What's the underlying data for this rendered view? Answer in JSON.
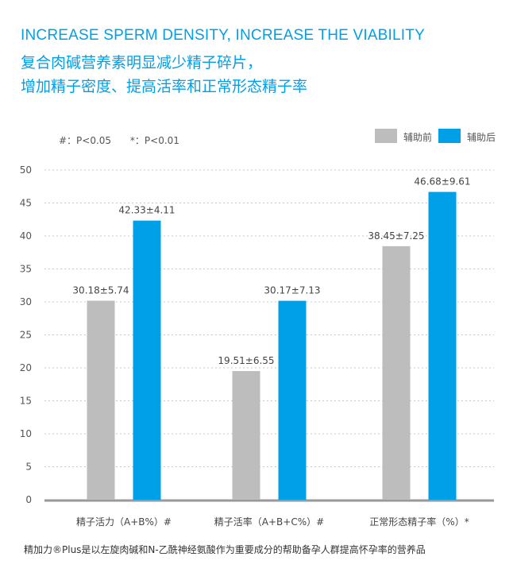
{
  "header": {
    "title_en": "INCREASE SPERM DENSITY, INCREASE THE VIABILITY",
    "title_cn_line1": "复合肉碱营养素明显减少精子碎片，",
    "title_cn_line2": "增加精子密度、提高活率和正常形态精子率"
  },
  "significance_notes": [
    "#：P<0.05",
    "*：P<0.01"
  ],
  "colors": {
    "before": "#bdbdbd",
    "after": "#00a0e9",
    "title": "#00a0e9"
  },
  "footnote": "精加力®Plus是以左旋肉碱和N-乙酰神经氨酸作为重要成分的帮助备孕人群提高怀孕率的营养品",
  "chart_data": {
    "type": "bar",
    "categories": [
      "精子活力（A+B%）#",
      "精子活率（A+B+C%）#",
      "正常形态精子率（%）*"
    ],
    "series": [
      {
        "name": "辅助前",
        "color": "#bdbdbd",
        "values": [
          30.18,
          19.51,
          38.45
        ],
        "labels": [
          "30.18±5.74",
          "19.51±6.55",
          "38.45±7.25"
        ]
      },
      {
        "name": "辅助后",
        "color": "#00a0e9",
        "values": [
          42.33,
          30.17,
          46.68
        ],
        "labels": [
          "42.33±4.11",
          "30.17±7.13",
          "46.68±9.61"
        ]
      }
    ],
    "ylim": [
      0,
      50
    ],
    "yticks": [
      0,
      5,
      10,
      15,
      20,
      25,
      30,
      35,
      40,
      45,
      50
    ],
    "grid": true,
    "legend_position": "top-right",
    "xlabel": "",
    "ylabel": ""
  }
}
